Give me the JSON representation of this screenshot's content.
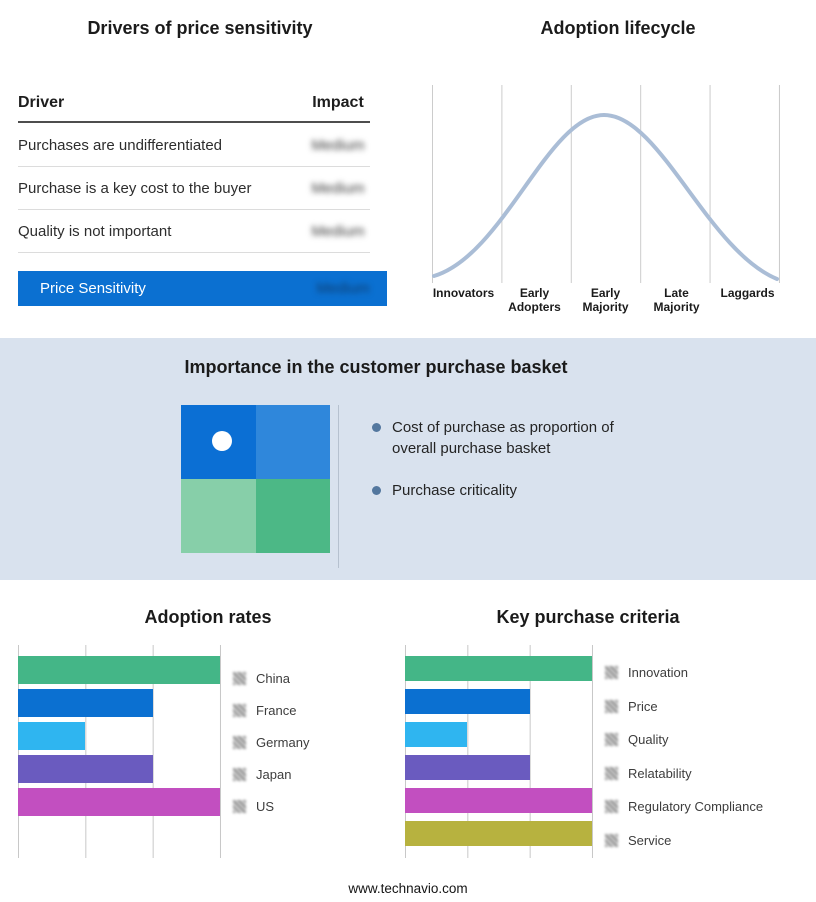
{
  "page": {
    "footer_url": "www.technavio.com"
  },
  "colors": {
    "highlight_blue": "#0b70d1",
    "band_bg": "#d9e2ee",
    "curve": "#aabdd6"
  },
  "drivers": {
    "title": "Drivers of price sensitivity",
    "columns": {
      "driver": "Driver",
      "impact": "Impact"
    },
    "rows": [
      {
        "driver": "Purchases are undifferentiated",
        "impact": "Medium"
      },
      {
        "driver": "Purchase is a key cost to the buyer",
        "impact": "Medium"
      },
      {
        "driver": "Quality is not important",
        "impact": "Medium"
      }
    ],
    "highlight": {
      "driver": "Price Sensitivity",
      "impact": "Medium"
    }
  },
  "basket": {
    "title": "Importance in the customer purchase basket",
    "bullets": [
      "Cost of purchase as proportion of overall purchase basket",
      "Purchase criticality"
    ],
    "quadrant_colors": {
      "top_left": "#0b6fd4",
      "top_right": "#2f87db",
      "bottom_left": "#87cfa9",
      "bottom_right": "#4cb886"
    }
  },
  "chart_data": [
    {
      "type": "line",
      "title": "Adoption lifecycle",
      "categories": [
        "Innovators",
        "Early Adopters",
        "Early Majority",
        "Late Majority",
        "Laggards"
      ],
      "description": "Bell-shaped adoption curve rising from Innovators, peaking over Early Majority, falling to Laggards",
      "color": "#aabdd6",
      "grid": true,
      "legend_position": "none"
    },
    {
      "type": "bar",
      "orientation": "horizontal",
      "title": "Adoption rates",
      "categories": [
        "China",
        "France",
        "Germany",
        "Japan",
        "US"
      ],
      "values": [
        3,
        2,
        1,
        2,
        3
      ],
      "xmax": 3,
      "xlim": [
        0,
        3
      ],
      "colors": [
        "#44b687",
        "#0b70d1",
        "#2fb5f0",
        "#6a5bbf",
        "#c24fc0"
      ],
      "grid": true,
      "legend_position": "right"
    },
    {
      "type": "bar",
      "orientation": "horizontal",
      "title": "Key purchase criteria",
      "categories": [
        "Innovation",
        "Price",
        "Quality",
        "Relatability",
        "Regulatory Compliance",
        "Service"
      ],
      "values": [
        3,
        2,
        1,
        2,
        3,
        3
      ],
      "xmax": 3,
      "xlim": [
        0,
        3
      ],
      "colors": [
        "#44b687",
        "#0b70d1",
        "#2fb5f0",
        "#6a5bbf",
        "#c24fc0",
        "#b7b23f"
      ],
      "grid": true,
      "legend_position": "right"
    }
  ]
}
